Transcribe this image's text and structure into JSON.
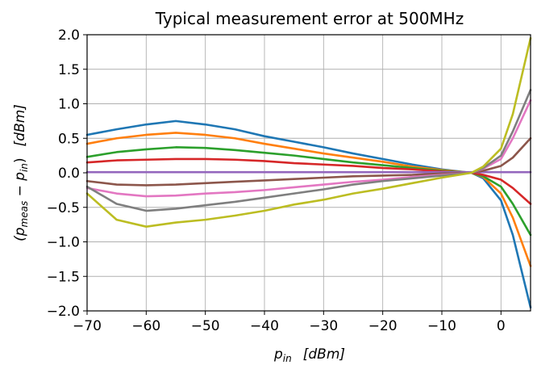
{
  "chart_data": {
    "type": "line",
    "title": "Typical measurement error at 500MHz",
    "xlabel": {
      "main": "p",
      "sub": "in",
      "unit": "[dBm]"
    },
    "ylabel": {
      "main": "(p",
      "sub1": "meas",
      "mid": " − p",
      "sub2": "in",
      "close": ")",
      "unit": "[dBm]"
    },
    "xlim": [
      -70,
      5
    ],
    "ylim": [
      -2.0,
      2.0
    ],
    "xticks": [
      -70,
      -60,
      -50,
      -40,
      -30,
      -20,
      -10,
      0
    ],
    "xtick_labels": [
      "−70",
      "−60",
      "−50",
      "−40",
      "−30",
      "−20",
      "−10",
      "0"
    ],
    "yticks": [
      2.0,
      1.5,
      1.0,
      0.5,
      0.0,
      -0.5,
      -1.0,
      -1.5,
      -2.0
    ],
    "ytick_labels": [
      "2.0",
      "1.5",
      "1.0",
      "0.5",
      "0.0",
      "−0.5",
      "−1.0",
      "−1.5",
      "−2.0"
    ],
    "grid": true,
    "x": [
      -70,
      -65,
      -60,
      -55,
      -50,
      -45,
      -40,
      -35,
      -30,
      -25,
      -20,
      -15,
      -10,
      -5,
      -3,
      0,
      2,
      5
    ],
    "series": [
      {
        "color": "#1f77b4",
        "values": [
          0.55,
          0.63,
          0.7,
          0.75,
          0.7,
          0.63,
          0.53,
          0.45,
          0.37,
          0.28,
          0.2,
          0.12,
          0.05,
          0.0,
          -0.08,
          -0.4,
          -0.9,
          -1.95
        ]
      },
      {
        "color": "#ff7f0e",
        "values": [
          0.42,
          0.5,
          0.55,
          0.58,
          0.55,
          0.5,
          0.42,
          0.35,
          0.28,
          0.22,
          0.16,
          0.09,
          0.04,
          0.0,
          -0.06,
          -0.3,
          -0.65,
          -1.35
        ]
      },
      {
        "color": "#2ca02c",
        "values": [
          0.23,
          0.3,
          0.34,
          0.37,
          0.36,
          0.33,
          0.29,
          0.25,
          0.2,
          0.15,
          0.11,
          0.07,
          0.03,
          0.0,
          -0.05,
          -0.2,
          -0.45,
          -0.9
        ]
      },
      {
        "color": "#d62728",
        "values": [
          0.15,
          0.18,
          0.19,
          0.2,
          0.2,
          0.19,
          0.17,
          0.14,
          0.12,
          0.1,
          0.07,
          0.05,
          0.02,
          0.0,
          -0.03,
          -0.1,
          -0.22,
          -0.45
        ]
      },
      {
        "color": "#9467bd",
        "values": [
          0.01,
          0.01,
          0.01,
          0.01,
          0.01,
          0.01,
          0.01,
          0.01,
          0.01,
          0.01,
          0.01,
          0.01,
          0.01,
          0.01,
          0.01,
          0.01,
          0.01,
          0.01
        ]
      },
      {
        "color": "#8c564b",
        "values": [
          -0.12,
          -0.17,
          -0.18,
          -0.17,
          -0.15,
          -0.13,
          -0.11,
          -0.09,
          -0.07,
          -0.05,
          -0.04,
          -0.03,
          -0.01,
          0.0,
          0.03,
          0.1,
          0.22,
          0.5
        ]
      },
      {
        "color": "#e377c2",
        "values": [
          -0.22,
          -0.3,
          -0.34,
          -0.33,
          -0.3,
          -0.28,
          -0.25,
          -0.21,
          -0.17,
          -0.13,
          -0.1,
          -0.06,
          -0.03,
          0.0,
          0.06,
          0.2,
          0.5,
          1.05
        ]
      },
      {
        "color": "#7f7f7f",
        "values": [
          -0.2,
          -0.45,
          -0.55,
          -0.52,
          -0.47,
          -0.42,
          -0.36,
          -0.3,
          -0.24,
          -0.17,
          -0.12,
          -0.08,
          -0.04,
          0.0,
          0.07,
          0.25,
          0.6,
          1.2
        ]
      },
      {
        "color": "#bcbd22",
        "values": [
          -0.3,
          -0.68,
          -0.78,
          -0.72,
          -0.68,
          -0.62,
          -0.55,
          -0.46,
          -0.39,
          -0.3,
          -0.23,
          -0.15,
          -0.07,
          0.0,
          0.09,
          0.35,
          0.85,
          1.95
        ]
      }
    ]
  }
}
